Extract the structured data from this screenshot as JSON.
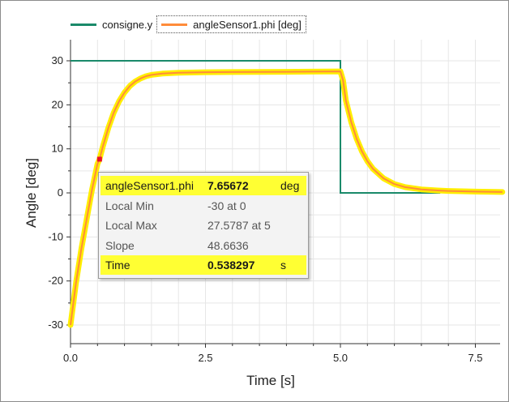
{
  "legend": {
    "items": [
      {
        "label": "consigne.y",
        "color": "#1a8a6a",
        "selected": false
      },
      {
        "label": "angleSensor1.phi [deg]",
        "color": "#ff8c3a",
        "selected": true
      }
    ]
  },
  "tooltip": {
    "rows": [
      {
        "label": "angleSensor1.phi",
        "value": "7.65672",
        "unit": "deg",
        "highlight": true
      },
      {
        "label": "Local Min",
        "value": "-30 at 0",
        "unit": "",
        "highlight": false
      },
      {
        "label": "Local Max",
        "value": "27.5787 at 5",
        "unit": "",
        "highlight": false
      },
      {
        "label": "Slope",
        "value": "48.6636",
        "unit": "",
        "highlight": false
      },
      {
        "label": "Time",
        "value": "0.538297",
        "unit": "s",
        "highlight": true
      }
    ]
  },
  "chart_data": {
    "type": "line",
    "xlabel": "Time [s]",
    "ylabel": "Angle [deg]",
    "xlim": [
      0,
      8
    ],
    "ylim": [
      -34,
      34
    ],
    "xticks": [
      0,
      2.5,
      5,
      7.5
    ],
    "xtick_labels": [
      "0.0",
      "2.5",
      "5.0",
      "7.5"
    ],
    "yticks": [
      -30,
      -20,
      -10,
      0,
      10,
      20,
      30
    ],
    "ytick_labels": [
      "-30",
      "-20",
      "-10",
      "0",
      "10",
      "20",
      "30"
    ],
    "grid": true,
    "legend_position": "top-left",
    "highlight_color": "#ffee00",
    "marker": {
      "x": 0.538297,
      "y": 7.65672,
      "color": "#e8102a"
    },
    "series": [
      {
        "name": "consigne.y",
        "color": "#1a8a6a",
        "x": [
          0,
          5,
          5,
          6.85
        ],
        "y": [
          30,
          30,
          0,
          0
        ]
      },
      {
        "name": "angleSensor1.phi [deg]",
        "color": "#ff8c3a",
        "x": [
          0,
          0.1,
          0.2,
          0.3,
          0.4,
          0.5,
          0.538,
          0.6,
          0.7,
          0.8,
          0.9,
          1.0,
          1.1,
          1.2,
          1.3,
          1.4,
          1.5,
          1.7,
          2.0,
          2.5,
          3.0,
          4.0,
          5.0,
          5.05,
          5.1,
          5.2,
          5.3,
          5.4,
          5.5,
          5.6,
          5.8,
          6.0,
          6.2,
          6.5,
          6.8,
          7.0,
          7.5,
          8.0
        ],
        "y": [
          -30,
          -20.5,
          -12.8,
          -5.9,
          0.8,
          6.6,
          7.66,
          10.6,
          14.7,
          18.2,
          20.8,
          22.8,
          24.3,
          25.3,
          26.0,
          26.5,
          26.8,
          27.1,
          27.3,
          27.4,
          27.45,
          27.5,
          27.58,
          25.5,
          21.0,
          16.1,
          12.3,
          9.4,
          7.2,
          5.5,
          3.3,
          2.0,
          1.3,
          0.8,
          0.55,
          0.45,
          0.3,
          0.2
        ]
      }
    ]
  }
}
